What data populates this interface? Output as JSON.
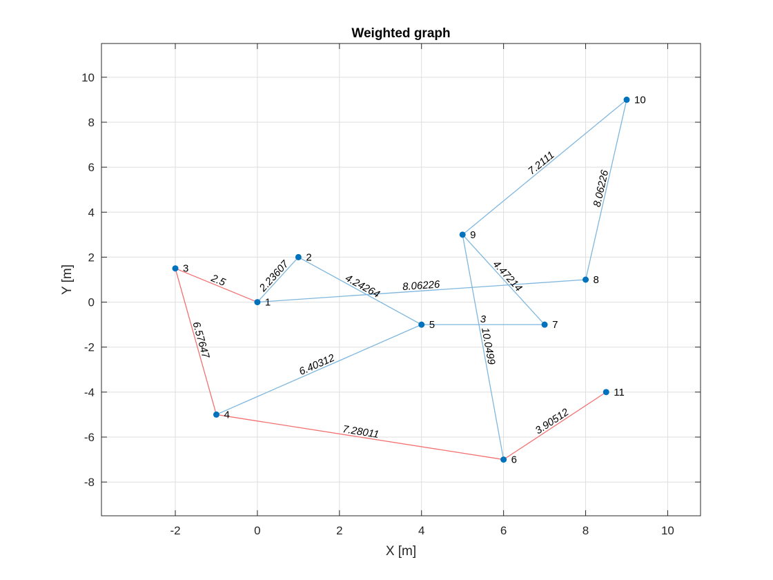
{
  "chart_data": {
    "type": "scatter",
    "title": "Weighted graph",
    "xlabel": "X [m]",
    "ylabel": "Y [m]",
    "xlim": [
      -3.8,
      10.8
    ],
    "ylim": [
      -9.5,
      11.5
    ],
    "xticks": [
      -2,
      0,
      2,
      4,
      6,
      8,
      10
    ],
    "yticks": [
      -8,
      -6,
      -4,
      -2,
      0,
      2,
      4,
      6,
      8,
      10
    ],
    "grid": true,
    "colors": {
      "node": "#0072BD",
      "edge": "#7EB6DE",
      "path_edge": "#F27070"
    },
    "nodes": [
      {
        "id": "1",
        "x": 0,
        "y": 0
      },
      {
        "id": "2",
        "x": 1,
        "y": 2
      },
      {
        "id": "3",
        "x": -2,
        "y": 1.5
      },
      {
        "id": "4",
        "x": -1,
        "y": -5
      },
      {
        "id": "5",
        "x": 4,
        "y": -1
      },
      {
        "id": "6",
        "x": 6,
        "y": -7
      },
      {
        "id": "7",
        "x": 7,
        "y": -1
      },
      {
        "id": "8",
        "x": 8,
        "y": 1
      },
      {
        "id": "9",
        "x": 5,
        "y": 3
      },
      {
        "id": "10",
        "x": 9,
        "y": 9
      },
      {
        "id": "11",
        "x": 8.5,
        "y": -4
      }
    ],
    "edges": [
      {
        "from": "1",
        "to": "2",
        "weight": "2.23607",
        "highlighted": false
      },
      {
        "from": "1",
        "to": "3",
        "weight": "2.5",
        "highlighted": true
      },
      {
        "from": "1",
        "to": "8",
        "weight": "8.06226",
        "highlighted": false
      },
      {
        "from": "2",
        "to": "5",
        "weight": "4.24264",
        "highlighted": false
      },
      {
        "from": "3",
        "to": "4",
        "weight": "6.57647",
        "highlighted": true
      },
      {
        "from": "4",
        "to": "5",
        "weight": "6.40312",
        "highlighted": false
      },
      {
        "from": "4",
        "to": "6",
        "weight": "7.28011",
        "highlighted": true
      },
      {
        "from": "5",
        "to": "7",
        "weight": "3",
        "highlighted": false
      },
      {
        "from": "6",
        "to": "9",
        "weight": "10.0499",
        "highlighted": false
      },
      {
        "from": "6",
        "to": "11",
        "weight": "3.90512",
        "highlighted": true
      },
      {
        "from": "7",
        "to": "9",
        "weight": "4.47214",
        "highlighted": false
      },
      {
        "from": "8",
        "to": "10",
        "weight": "8.06226",
        "highlighted": false
      },
      {
        "from": "9",
        "to": "10",
        "weight": "7.2111",
        "highlighted": false
      }
    ]
  }
}
